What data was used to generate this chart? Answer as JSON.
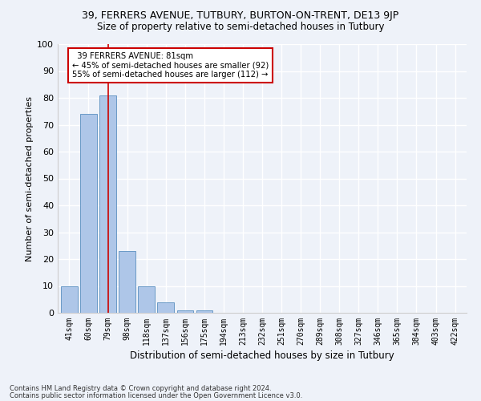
{
  "title1": "39, FERRERS AVENUE, TUTBURY, BURTON-ON-TRENT, DE13 9JP",
  "title2": "Size of property relative to semi-detached houses in Tutbury",
  "xlabel": "Distribution of semi-detached houses by size in Tutbury",
  "ylabel": "Number of semi-detached properties",
  "categories": [
    "41sqm",
    "60sqm",
    "79sqm",
    "98sqm",
    "118sqm",
    "137sqm",
    "156sqm",
    "175sqm",
    "194sqm",
    "213sqm",
    "232sqm",
    "251sqm",
    "270sqm",
    "289sqm",
    "308sqm",
    "327sqm",
    "346sqm",
    "365sqm",
    "384sqm",
    "403sqm",
    "422sqm"
  ],
  "values": [
    10,
    74,
    81,
    23,
    10,
    4,
    1,
    1,
    0,
    0,
    0,
    0,
    0,
    0,
    0,
    0,
    0,
    0,
    0,
    0,
    0
  ],
  "property_bar_index": 2,
  "property_size": "81sqm",
  "smaller_pct": "45%",
  "smaller_count": 92,
  "larger_pct": "55%",
  "larger_count": 112,
  "bar_color": "#aec6e8",
  "bar_edge_color": "#5a8fc0",
  "property_line_color": "#cc0000",
  "annotation_box_color": "#ffffff",
  "annotation_box_edge": "#cc0000",
  "background_color": "#eef2f9",
  "grid_color": "#ffffff",
  "footnote1": "Contains HM Land Registry data © Crown copyright and database right 2024.",
  "footnote2": "Contains public sector information licensed under the Open Government Licence v3.0.",
  "ylim": [
    0,
    100
  ],
  "yticks": [
    0,
    10,
    20,
    30,
    40,
    50,
    60,
    70,
    80,
    90,
    100
  ]
}
